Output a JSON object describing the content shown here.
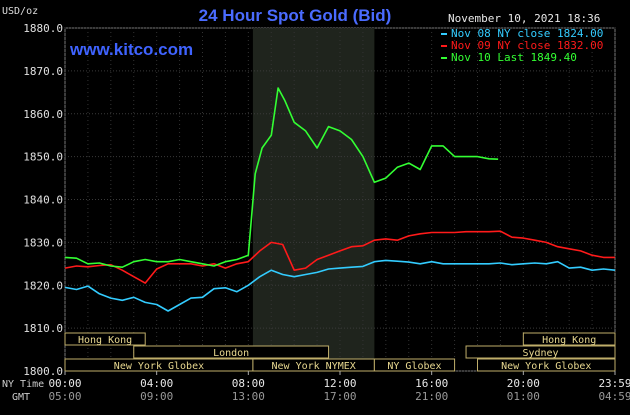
{
  "header": {
    "units": "USD/oz",
    "title": "24 Hour Spot Gold (Bid)",
    "timestamp": "November 10, 2021 18:36",
    "watermark": "www.kitco.com"
  },
  "legend": [
    {
      "label": "Nov 08 NY close 1824.00",
      "color": "#33ccff"
    },
    {
      "label": "Nov 09 NY close 1832.00",
      "color": "#ff1a1a"
    },
    {
      "label": "Nov 10 Last 1849.40",
      "color": "#33ff33"
    }
  ],
  "axis_labels": {
    "ny_time": "NY Time",
    "gmt": "GMT"
  },
  "sessions": [
    {
      "label": "Hong Kong",
      "row": 0,
      "start": -4,
      "end": 3.5
    },
    {
      "label": "Hong Kong",
      "row": 0,
      "start": 20,
      "end": 24
    },
    {
      "label": "London",
      "row": 1,
      "start": 3,
      "end": 11.5
    },
    {
      "label": "Sydney",
      "row": 1,
      "start": 17.5,
      "end": 24
    },
    {
      "label": "New York Globex",
      "row": 2,
      "start": 0,
      "end": 8.2
    },
    {
      "label": "New York NYMEX",
      "row": 2,
      "start": 8.2,
      "end": 13.5
    },
    {
      "label": "NY Globex",
      "row": 2,
      "start": 13.5,
      "end": 17
    },
    {
      "label": "New York Globex",
      "row": 2,
      "start": 18,
      "end": 24
    }
  ],
  "chart_data": {
    "type": "line",
    "xlabel": "",
    "ylabel": "USD/oz",
    "xlim": [
      0,
      24
    ],
    "ylim": [
      1800,
      1880
    ],
    "yticks": [
      1800,
      1810,
      1820,
      1830,
      1840,
      1850,
      1860,
      1870,
      1880
    ],
    "ytick_labels": [
      "1800.0",
      "1810.0",
      "1820.0",
      "1830.0",
      "1840.0",
      "1850.0",
      "1860.0",
      "1870.0",
      "1880.0"
    ],
    "xticks": [
      0,
      4,
      8,
      12,
      16,
      20,
      24
    ],
    "xtick_labels": [
      "00:00",
      "04:00",
      "08:00",
      "12:00",
      "16:00",
      "20:00",
      "23:59"
    ],
    "gmt_tick_labels": [
      "05:00",
      "09:00",
      "13:00",
      "17:00",
      "21:00",
      "01:00",
      "04:59"
    ],
    "highlight_range": [
      8.2,
      13.5
    ],
    "grid": true,
    "legend_position": "top-right",
    "series": [
      {
        "name": "Nov 08 NY close 1824.00",
        "color": "#33ccff",
        "x": [
          0,
          0.5,
          1,
          1.5,
          2,
          2.5,
          3,
          3.5,
          4,
          4.5,
          5,
          5.5,
          6,
          6.5,
          7,
          7.5,
          8,
          8.5,
          9,
          9.5,
          10,
          10.5,
          11,
          11.5,
          12,
          12.5,
          13,
          13.5,
          14,
          14.5,
          15,
          15.5,
          16,
          16.5,
          17,
          17.5,
          18,
          18.5,
          19,
          19.5,
          20,
          20.5,
          21,
          21.5,
          22,
          22.5,
          23,
          23.5,
          24
        ],
        "values": [
          1819.5,
          1819,
          1819.8,
          1818,
          1817,
          1816.5,
          1817.2,
          1816,
          1815.5,
          1814,
          1815.5,
          1817,
          1817.2,
          1819.2,
          1819.4,
          1818.5,
          1820,
          1822,
          1823.5,
          1822.5,
          1822,
          1822.5,
          1823,
          1823.8,
          1824,
          1824.2,
          1824.4,
          1825.5,
          1825.8,
          1825.6,
          1825.4,
          1825,
          1825.5,
          1825,
          1825,
          1825,
          1825,
          1825,
          1825.2,
          1824.8,
          1825,
          1825.2,
          1825,
          1825.5,
          1824,
          1824.2,
          1823.5,
          1823.8,
          1823.5
        ]
      },
      {
        "name": "Nov 09 NY close 1832.00",
        "color": "#ff1a1a",
        "x": [
          0,
          0.5,
          1,
          1.5,
          2,
          2.5,
          3,
          3.5,
          4,
          4.5,
          5,
          5.5,
          6,
          6.5,
          7,
          7.5,
          8,
          8.5,
          9,
          9.5,
          10,
          10.5,
          11,
          11.5,
          12,
          12.5,
          13,
          13.5,
          14,
          14.5,
          15,
          15.5,
          16,
          16.5,
          17,
          17.5,
          18,
          18.5,
          19,
          19.5,
          20,
          20.5,
          21,
          21.5,
          22,
          22.5,
          23,
          23.5,
          24
        ],
        "values": [
          1824,
          1824.5,
          1824.3,
          1824.6,
          1824.8,
          1823.5,
          1822,
          1820.5,
          1823.8,
          1825,
          1825,
          1825,
          1824.5,
          1825,
          1824,
          1825,
          1825.5,
          1828,
          1830,
          1829.5,
          1823.5,
          1824,
          1826,
          1827,
          1828,
          1829,
          1829.2,
          1830.5,
          1830.8,
          1830.5,
          1831.5,
          1832,
          1832.3,
          1832.3,
          1832.3,
          1832.5,
          1832.5,
          1832.5,
          1832.6,
          1831.2,
          1831,
          1830.5,
          1830,
          1829,
          1828.5,
          1828,
          1827,
          1826.5,
          1826.5
        ]
      },
      {
        "name": "Nov 10 Last 1849.40",
        "color": "#33ff33",
        "x": [
          0,
          0.5,
          1,
          1.5,
          2,
          2.5,
          3,
          3.5,
          4,
          4.5,
          5,
          5.5,
          6,
          6.5,
          7,
          7.5,
          8,
          8.3,
          8.6,
          9,
          9.3,
          9.6,
          10,
          10.5,
          11,
          11.5,
          12,
          12.5,
          13,
          13.5,
          14,
          14.5,
          15,
          15.5,
          16,
          16.5,
          17,
          17.5,
          18,
          18.5,
          18.9
        ],
        "values": [
          1826.5,
          1826.3,
          1825,
          1825.2,
          1824.5,
          1824.2,
          1825.5,
          1826,
          1825.5,
          1825.5,
          1826,
          1825.5,
          1825,
          1824.5,
          1825.5,
          1826,
          1827,
          1846,
          1852,
          1855,
          1866,
          1863,
          1858,
          1856,
          1852,
          1857,
          1856,
          1854,
          1850,
          1844,
          1845,
          1847.5,
          1848.5,
          1847,
          1852.5,
          1852.5,
          1850,
          1850,
          1850,
          1849.5,
          1849.4
        ]
      }
    ]
  }
}
